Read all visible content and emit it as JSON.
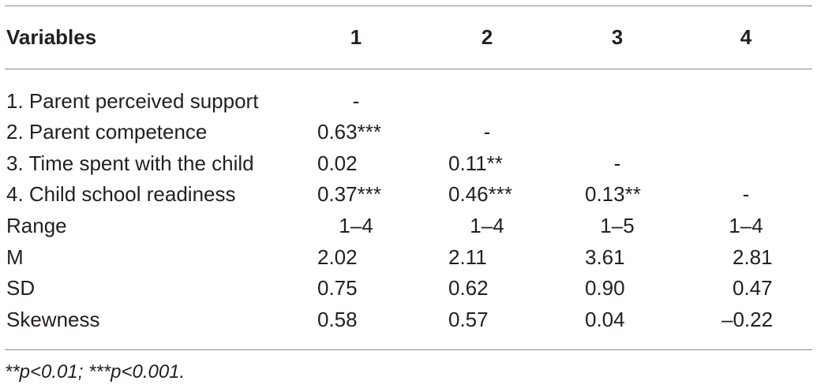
{
  "table": {
    "headers": [
      "Variables",
      "1",
      "2",
      "3",
      "4"
    ],
    "rows": [
      {
        "label": "1. Parent perceived support",
        "cells": [
          "-",
          "",
          "",
          ""
        ]
      },
      {
        "label": "2. Parent competence",
        "cells": [
          "0.63***",
          "-",
          "",
          ""
        ]
      },
      {
        "label": "3. Time spent with the child",
        "cells": [
          "0.02",
          "0.11**",
          "-",
          ""
        ]
      },
      {
        "label": "4. Child school readiness",
        "cells": [
          "0.37***",
          "0.46***",
          "0.13**",
          "-"
        ]
      },
      {
        "label": "Range",
        "cells": [
          "1–4",
          "1–4",
          "1–5",
          "1–4"
        ]
      },
      {
        "label": "M",
        "cells": [
          "2.02",
          "2.11",
          "3.61",
          "2.81"
        ]
      },
      {
        "label": "SD",
        "cells": [
          "0.75",
          "0.62",
          "0.90",
          "0.47"
        ]
      },
      {
        "label": "Skewness",
        "cells": [
          "0.58",
          "0.57",
          "0.04",
          "–0.22"
        ]
      }
    ]
  },
  "footnote": "**p<0.01; ***p<0.001."
}
